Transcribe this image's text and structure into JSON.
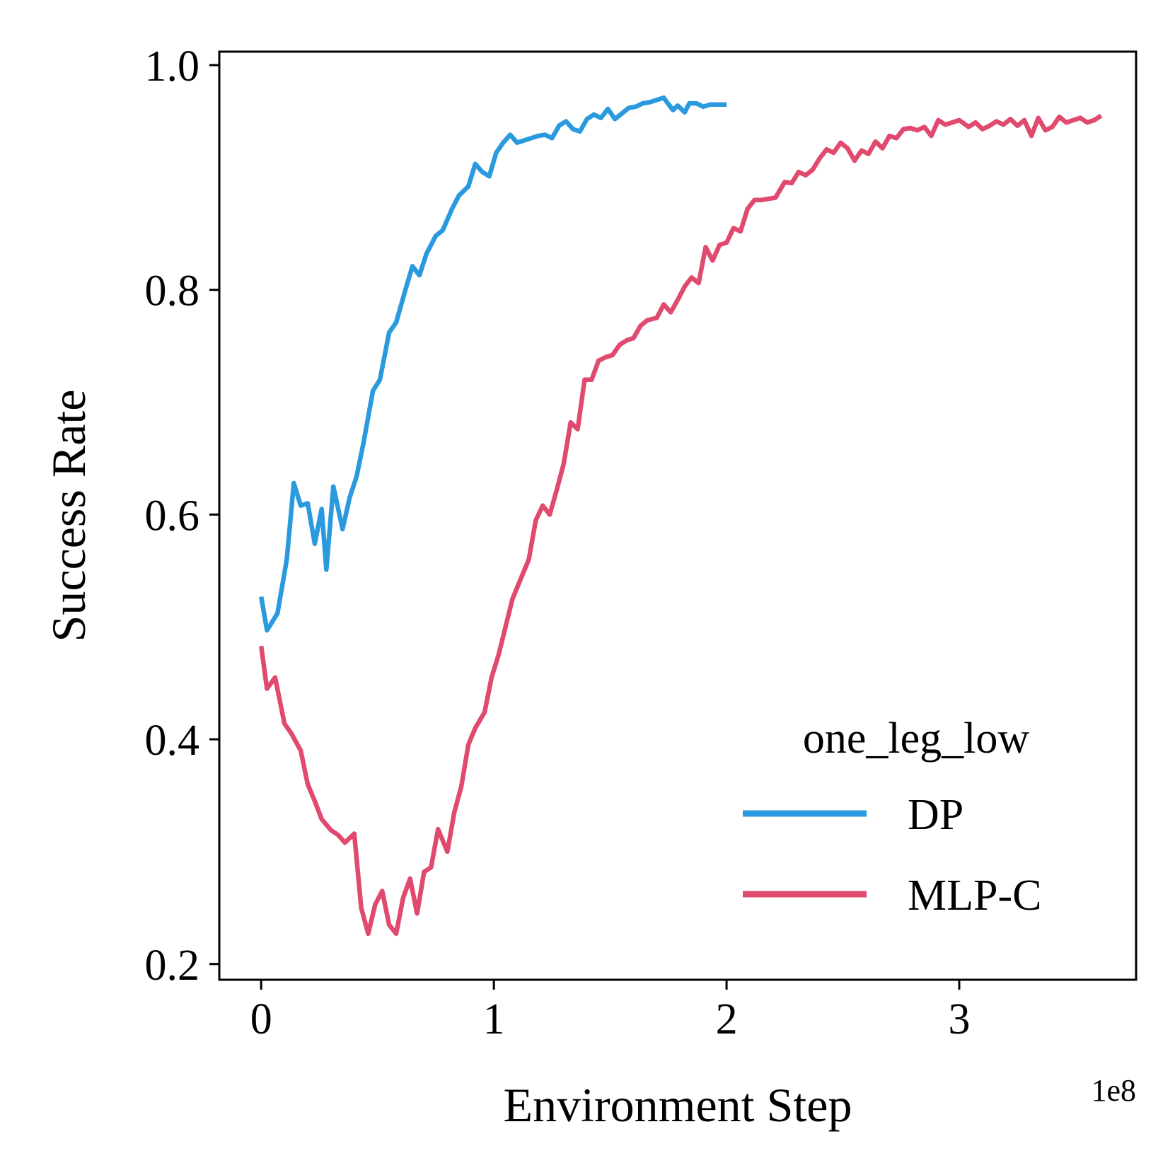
{
  "chart_data": {
    "type": "line",
    "xlabel": "Environment Step",
    "ylabel": "Success Rate",
    "x_offset_label": "1e8",
    "xlim": [
      -0.18,
      3.76
    ],
    "ylim": [
      0.186,
      1.012
    ],
    "xticks": [
      0,
      1,
      2,
      3
    ],
    "xtick_labels": [
      "0",
      "1",
      "2",
      "3"
    ],
    "yticks": [
      0.2,
      0.4,
      0.6,
      0.8,
      1.0
    ],
    "ytick_labels": [
      "0.2",
      "0.4",
      "0.6",
      "0.8",
      "1.0"
    ],
    "grid": false,
    "legend": {
      "title": "one_leg_low",
      "position": "lower right"
    },
    "series": [
      {
        "name": "DP",
        "color": "#2A9ADF",
        "x": [
          0.0,
          0.025,
          0.07,
          0.11,
          0.14,
          0.17,
          0.2,
          0.23,
          0.26,
          0.28,
          0.31,
          0.35,
          0.38,
          0.41,
          0.44,
          0.48,
          0.51,
          0.55,
          0.58,
          0.62,
          0.65,
          0.68,
          0.71,
          0.75,
          0.78,
          0.82,
          0.85,
          0.89,
          0.92,
          0.95,
          0.98,
          1.01,
          1.04,
          1.07,
          1.1,
          1.13,
          1.16,
          1.19,
          1.22,
          1.25,
          1.28,
          1.31,
          1.34,
          1.37,
          1.4,
          1.43,
          1.46,
          1.49,
          1.52,
          1.55,
          1.58,
          1.61,
          1.64,
          1.67,
          1.7,
          1.73,
          1.74,
          1.77,
          1.79,
          1.82,
          1.84,
          1.87,
          1.9,
          1.93,
          1.96,
          2.0
        ],
        "y": [
          0.527,
          0.497,
          0.512,
          0.56,
          0.628,
          0.608,
          0.61,
          0.574,
          0.605,
          0.551,
          0.625,
          0.587,
          0.615,
          0.634,
          0.664,
          0.71,
          0.72,
          0.762,
          0.771,
          0.8,
          0.821,
          0.813,
          0.832,
          0.848,
          0.853,
          0.872,
          0.884,
          0.892,
          0.912,
          0.905,
          0.901,
          0.922,
          0.931,
          0.938,
          0.931,
          0.933,
          0.935,
          0.937,
          0.938,
          0.935,
          0.946,
          0.95,
          0.943,
          0.941,
          0.952,
          0.956,
          0.953,
          0.961,
          0.952,
          0.957,
          0.962,
          0.963,
          0.966,
          0.967,
          0.969,
          0.971,
          0.968,
          0.96,
          0.964,
          0.958,
          0.966,
          0.966,
          0.963,
          0.965,
          0.965,
          0.965
        ]
      },
      {
        "name": "MLP-C",
        "color": "#E04A6E",
        "x": [
          0.0,
          0.025,
          0.06,
          0.1,
          0.13,
          0.17,
          0.2,
          0.23,
          0.26,
          0.3,
          0.33,
          0.36,
          0.4,
          0.43,
          0.46,
          0.49,
          0.52,
          0.55,
          0.58,
          0.61,
          0.64,
          0.67,
          0.7,
          0.73,
          0.76,
          0.8,
          0.83,
          0.86,
          0.89,
          0.92,
          0.96,
          0.99,
          1.02,
          1.05,
          1.08,
          1.12,
          1.15,
          1.18,
          1.21,
          1.24,
          1.27,
          1.3,
          1.33,
          1.36,
          1.39,
          1.42,
          1.45,
          1.48,
          1.51,
          1.54,
          1.57,
          1.6,
          1.63,
          1.66,
          1.7,
          1.73,
          1.76,
          1.79,
          1.82,
          1.85,
          1.88,
          1.91,
          1.94,
          1.97,
          2.0,
          2.03,
          2.06,
          2.09,
          2.12,
          2.15,
          2.18,
          2.21,
          2.25,
          2.28,
          2.31,
          2.34,
          2.37,
          2.4,
          2.43,
          2.46,
          2.49,
          2.52,
          2.55,
          2.58,
          2.61,
          2.64,
          2.67,
          2.7,
          2.73,
          2.76,
          2.79,
          2.82,
          2.85,
          2.88,
          2.91,
          2.94,
          2.97,
          3.0,
          3.04,
          3.07,
          3.1,
          3.13,
          3.16,
          3.19,
          3.22,
          3.25,
          3.28,
          3.31,
          3.34,
          3.37,
          3.4,
          3.43,
          3.46,
          3.49,
          3.52,
          3.55,
          3.58,
          3.61
        ],
        "y": [
          0.483,
          0.445,
          0.455,
          0.414,
          0.405,
          0.39,
          0.36,
          0.345,
          0.329,
          0.319,
          0.315,
          0.308,
          0.316,
          0.25,
          0.227,
          0.253,
          0.265,
          0.235,
          0.227,
          0.259,
          0.276,
          0.245,
          0.282,
          0.286,
          0.32,
          0.3,
          0.335,
          0.358,
          0.395,
          0.41,
          0.424,
          0.455,
          0.475,
          0.5,
          0.525,
          0.545,
          0.56,
          0.595,
          0.608,
          0.6,
          0.622,
          0.645,
          0.682,
          0.676,
          0.72,
          0.72,
          0.737,
          0.74,
          0.742,
          0.751,
          0.755,
          0.757,
          0.768,
          0.773,
          0.775,
          0.787,
          0.78,
          0.791,
          0.803,
          0.811,
          0.806,
          0.838,
          0.826,
          0.84,
          0.842,
          0.855,
          0.852,
          0.872,
          0.88,
          0.88,
          0.881,
          0.882,
          0.896,
          0.895,
          0.905,
          0.902,
          0.907,
          0.917,
          0.925,
          0.922,
          0.931,
          0.926,
          0.915,
          0.924,
          0.921,
          0.932,
          0.926,
          0.937,
          0.935,
          0.943,
          0.944,
          0.942,
          0.945,
          0.937,
          0.951,
          0.947,
          0.949,
          0.951,
          0.945,
          0.949,
          0.943,
          0.946,
          0.95,
          0.947,
          0.952,
          0.946,
          0.951,
          0.937,
          0.953,
          0.942,
          0.945,
          0.954,
          0.949,
          0.951,
          0.953,
          0.949,
          0.951,
          0.955
        ]
      }
    ]
  }
}
